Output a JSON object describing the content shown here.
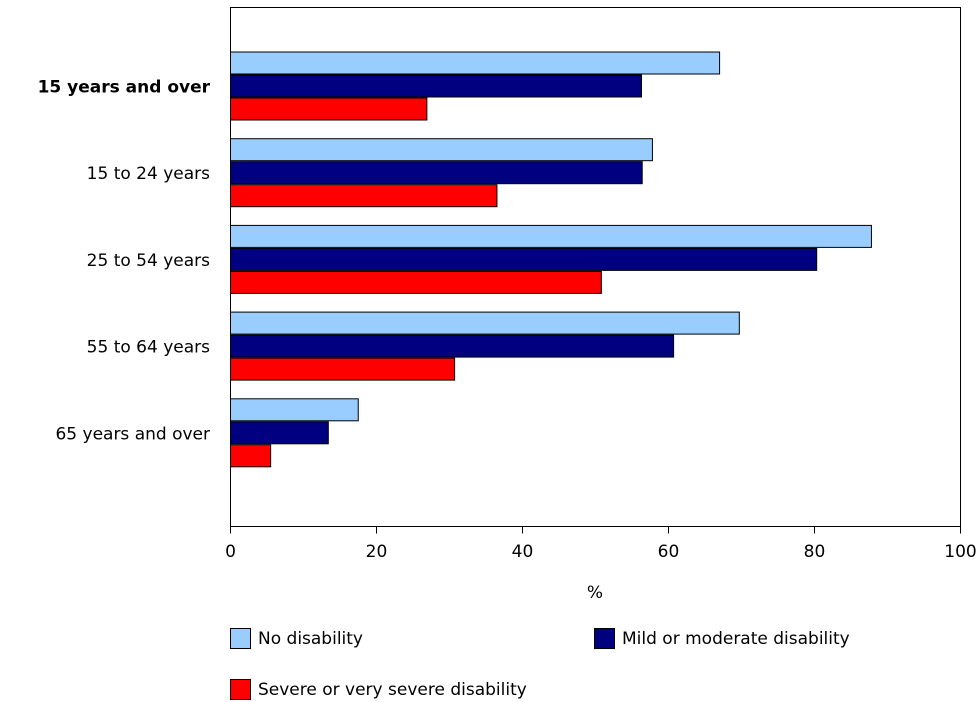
{
  "chart_data": {
    "type": "bar",
    "orientation": "horizontal",
    "categories": [
      "15 years and over",
      "15 to 24 years",
      "25 to 54 years",
      "55 to 64 years",
      "65 years and over"
    ],
    "bold_categories": [
      "15 years and over"
    ],
    "series": [
      {
        "name": "No disability",
        "color": "#99CCFF",
        "values": [
          67.0,
          57.8,
          87.8,
          69.7,
          17.5
        ]
      },
      {
        "name": "Mild or moderate disability",
        "color": "#000080",
        "values": [
          56.3,
          56.4,
          80.3,
          60.7,
          13.4
        ]
      },
      {
        "name": "Severe or very severe disability",
        "color": "#FF0000",
        "values": [
          26.9,
          36.5,
          50.8,
          30.7,
          5.5
        ]
      }
    ],
    "xlabel": "%",
    "xlim": [
      0,
      100
    ],
    "xticks": [
      0,
      20,
      40,
      60,
      80,
      100
    ],
    "grid": false,
    "legend_position": "bottom"
  }
}
